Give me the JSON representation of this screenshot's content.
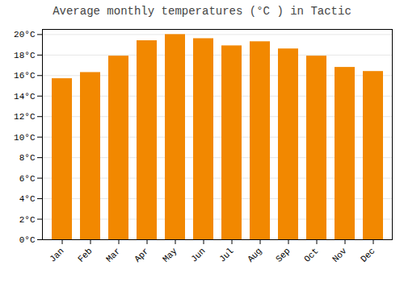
{
  "chart_data": {
    "type": "bar",
    "title": "Average monthly temperatures (°C ) in Tactic",
    "categories": [
      "Jan",
      "Feb",
      "Mar",
      "Apr",
      "May",
      "Jun",
      "Jul",
      "Aug",
      "Sep",
      "Oct",
      "Nov",
      "Dec"
    ],
    "values": [
      15.7,
      16.3,
      17.9,
      19.4,
      20.0,
      19.6,
      18.9,
      19.3,
      18.6,
      17.9,
      16.8,
      16.4
    ],
    "color": "#F28800",
    "ylim": [
      0,
      20.5
    ],
    "yticks": [
      {
        "value": 0,
        "label": "0°C"
      },
      {
        "value": 2,
        "label": "2°C"
      },
      {
        "value": 4,
        "label": "4°C"
      },
      {
        "value": 6,
        "label": "6°C"
      },
      {
        "value": 8,
        "label": "8°C"
      },
      {
        "value": 10,
        "label": "10°C"
      },
      {
        "value": 12,
        "label": "12°C"
      },
      {
        "value": 14,
        "label": "14°C"
      },
      {
        "value": 16,
        "label": "16°C"
      },
      {
        "value": 18,
        "label": "18°C"
      },
      {
        "value": 20,
        "label": "20°C"
      }
    ],
    "grid": true
  }
}
